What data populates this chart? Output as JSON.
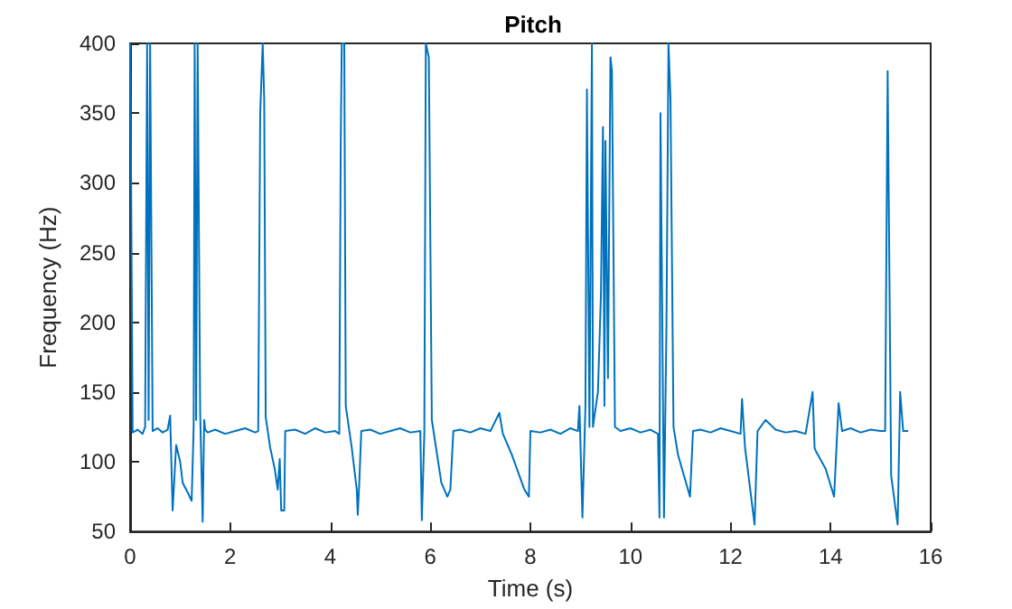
{
  "chart_data": {
    "type": "line",
    "title": "Pitch",
    "xlabel": "Time (s)",
    "ylabel": "Frequency (Hz)",
    "xlim": [
      0,
      16
    ],
    "ylim": [
      50,
      400
    ],
    "xticks": [
      0,
      2,
      4,
      6,
      8,
      10,
      12,
      14,
      16
    ],
    "yticks": [
      50,
      100,
      150,
      200,
      250,
      300,
      350,
      400
    ],
    "marker": "none",
    "line_style": "solid",
    "series": [
      {
        "color": "#0072bd",
        "x": [
          0,
          0.02,
          0.05,
          0.15,
          0.25,
          0.3,
          0.34,
          0.37,
          0.4,
          0.45,
          0.55,
          0.65,
          0.75,
          0.8,
          0.85,
          0.92,
          1.0,
          1.05,
          1.15,
          1.23,
          1.27,
          1.29,
          1.32,
          1.35,
          1.4,
          1.45,
          1.48,
          1.5,
          1.55,
          1.7,
          1.9,
          2.1,
          2.3,
          2.5,
          2.56,
          2.6,
          2.65,
          2.68,
          2.71,
          2.8,
          2.89,
          2.95,
          2.99,
          3.02,
          3.08,
          3.1,
          3.3,
          3.5,
          3.7,
          3.9,
          4.1,
          4.18,
          4.21,
          4.23,
          4.28,
          4.31,
          4.43,
          4.53,
          4.55,
          4.58,
          4.62,
          4.8,
          5.0,
          5.2,
          5.4,
          5.6,
          5.8,
          5.83,
          5.88,
          5.91,
          5.97,
          6.03,
          6.22,
          6.34,
          6.4,
          6.46,
          6.6,
          6.8,
          7.0,
          7.2,
          7.38,
          7.45,
          7.63,
          7.88,
          7.97,
          8.0,
          8.2,
          8.4,
          8.6,
          8.8,
          8.95,
          8.98,
          9.04,
          9.1,
          9.13,
          9.18,
          9.23,
          9.25,
          9.35,
          9.41,
          9.45,
          9.48,
          9.5,
          9.55,
          9.6,
          9.63,
          9.69,
          9.8,
          10.0,
          10.2,
          10.4,
          10.55,
          10.58,
          10.6,
          10.67,
          10.72,
          10.76,
          10.8,
          10.86,
          10.95,
          11.07,
          11.19,
          11.25,
          11.4,
          11.6,
          11.8,
          12.0,
          12.2,
          12.23,
          12.29,
          12.48,
          12.54,
          12.7,
          12.9,
          13.1,
          13.3,
          13.5,
          13.64,
          13.68,
          13.7,
          13.9,
          14.07,
          14.16,
          14.23,
          14.4,
          14.6,
          14.8,
          15.0,
          15.09,
          15.14,
          15.21,
          15.34,
          15.39,
          15.45,
          15.55
        ],
        "values": [
          400,
          300,
          121,
          123,
          120,
          125,
          400,
          130,
          400,
          122,
          124,
          121,
          123,
          133,
          65,
          112,
          100,
          85,
          78,
          72,
          125,
          400,
          130,
          400,
          135,
          57,
          130,
          123,
          121,
          123,
          120,
          122,
          124,
          121,
          122,
          350,
          400,
          360,
          132,
          110,
          95,
          80,
          102,
          65,
          65,
          122,
          123,
          120,
          124,
          121,
          122,
          120,
          330,
          400,
          400,
          140,
          110,
          80,
          62,
          85,
          122,
          123,
          120,
          122,
          124,
          121,
          122,
          58,
          120,
          400,
          390,
          130,
          85,
          75,
          80,
          122,
          123,
          121,
          124,
          122,
          135,
          120,
          105,
          80,
          75,
          122,
          121,
          123,
          120,
          124,
          122,
          140,
          60,
          140,
          367,
          125,
          400,
          125,
          150,
          220,
          340,
          140,
          330,
          160,
          390,
          380,
          125,
          122,
          124,
          121,
          123,
          120,
          60,
          350,
          60,
          200,
          400,
          360,
          125,
          105,
          90,
          75,
          122,
          123,
          121,
          124,
          122,
          120,
          145,
          110,
          55,
          122,
          130,
          123,
          121,
          122,
          120,
          150,
          110,
          108,
          95,
          75,
          142,
          122,
          124,
          121,
          123,
          122,
          122,
          380,
          90,
          55,
          150,
          122,
          122
        ]
      }
    ]
  }
}
